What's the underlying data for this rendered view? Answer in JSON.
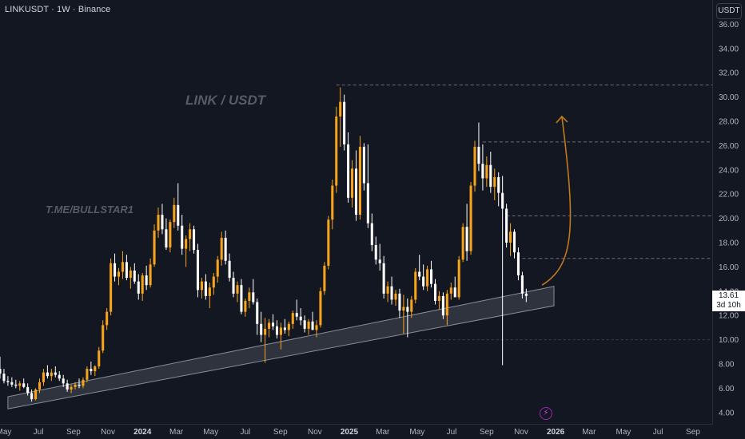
{
  "header": {
    "symbol_title": "LINKUSDT · 1W · Binance",
    "currency_button": "USDT"
  },
  "watermarks": {
    "pair": "LINK / USDT",
    "telegram": "T.ME/BULLSTAR1"
  },
  "last_price": {
    "value": "13.61",
    "countdown": "3d 10h"
  },
  "colors": {
    "background": "#131722",
    "bull_candle": "#f7a31c",
    "bear_candle": "#ffffff",
    "trendline": "#8a8d96",
    "arrow": "#c27a1c",
    "level_line": "#6b6f7a"
  },
  "chart_data": {
    "type": "candlestick",
    "title": "",
    "y_axis": {
      "side": "right",
      "range": [
        3.0,
        38.0
      ],
      "ticks": [
        "4.00",
        "6.00",
        "8.00",
        "10.00",
        "12.00",
        "14.00",
        "16.00",
        "18.00",
        "20.00",
        "22.00",
        "24.00",
        "26.00",
        "28.00",
        "30.00",
        "32.00",
        "34.00",
        "36.00"
      ]
    },
    "x_axis": {
      "start": "2023-04-24",
      "end": "2026-10-05",
      "labels": [
        {
          "text": "May",
          "date": "2023-05-01",
          "year": false
        },
        {
          "text": "Jul",
          "date": "2023-07-01",
          "year": false
        },
        {
          "text": "Sep",
          "date": "2023-09-01",
          "year": false
        },
        {
          "text": "Nov",
          "date": "2023-11-01",
          "year": false
        },
        {
          "text": "2024",
          "date": "2024-01-01",
          "year": true
        },
        {
          "text": "Mar",
          "date": "2024-03-01",
          "year": false
        },
        {
          "text": "May",
          "date": "2024-05-01",
          "year": false
        },
        {
          "text": "Jul",
          "date": "2024-07-01",
          "year": false
        },
        {
          "text": "Sep",
          "date": "2024-09-01",
          "year": false
        },
        {
          "text": "Nov",
          "date": "2024-11-01",
          "year": false
        },
        {
          "text": "2025",
          "date": "2025-01-01",
          "year": true
        },
        {
          "text": "Mar",
          "date": "2025-03-01",
          "year": false
        },
        {
          "text": "May",
          "date": "2025-05-01",
          "year": false
        },
        {
          "text": "Jul",
          "date": "2025-07-01",
          "year": false
        },
        {
          "text": "Sep",
          "date": "2025-09-01",
          "year": false
        },
        {
          "text": "Nov",
          "date": "2025-11-01",
          "year": false
        },
        {
          "text": "2026",
          "date": "2026-01-01",
          "year": true
        },
        {
          "text": "Mar",
          "date": "2026-03-01",
          "year": false
        },
        {
          "text": "May",
          "date": "2026-05-01",
          "year": false
        },
        {
          "text": "Jul",
          "date": "2026-07-01",
          "year": false
        },
        {
          "text": "Sep",
          "date": "2026-09-01",
          "year": false
        }
      ]
    },
    "grid": false,
    "candles_start": "2023-04-24",
    "candle_interval_days": 7,
    "candles": [
      [
        7.6,
        8.6,
        6.8,
        7.2
      ],
      [
        7.2,
        7.6,
        6.4,
        6.6
      ],
      [
        6.6,
        7.0,
        6.2,
        6.5
      ],
      [
        6.5,
        6.9,
        6.1,
        6.3
      ],
      [
        6.3,
        6.7,
        6.0,
        6.2
      ],
      [
        6.2,
        6.6,
        5.8,
        6.4
      ],
      [
        6.4,
        6.8,
        6.0,
        6.1
      ],
      [
        6.1,
        6.4,
        5.4,
        5.6
      ],
      [
        5.6,
        5.9,
        4.9,
        5.1
      ],
      [
        5.1,
        6.0,
        5.0,
        5.9
      ],
      [
        5.9,
        6.8,
        5.6,
        6.5
      ],
      [
        6.5,
        7.6,
        6.2,
        7.3
      ],
      [
        7.3,
        7.9,
        6.8,
        7.0
      ],
      [
        7.0,
        7.6,
        6.6,
        7.3
      ],
      [
        7.3,
        7.8,
        6.9,
        7.1
      ],
      [
        7.1,
        7.4,
        6.6,
        6.8
      ],
      [
        6.8,
        7.1,
        6.1,
        6.4
      ],
      [
        6.4,
        6.7,
        5.7,
        5.9
      ],
      [
        5.9,
        6.3,
        5.6,
        6.1
      ],
      [
        6.1,
        6.5,
        5.9,
        6.3
      ],
      [
        6.3,
        6.8,
        6.0,
        6.2
      ],
      [
        6.2,
        6.9,
        6.0,
        6.7
      ],
      [
        6.7,
        7.8,
        6.5,
        7.6
      ],
      [
        7.6,
        8.2,
        7.1,
        7.4
      ],
      [
        7.4,
        7.9,
        7.0,
        7.8
      ],
      [
        7.8,
        9.4,
        7.6,
        9.1
      ],
      [
        9.1,
        11.6,
        8.9,
        11.2
      ],
      [
        11.2,
        12.6,
        10.8,
        12.3
      ],
      [
        12.3,
        16.7,
        12.0,
        16.3
      ],
      [
        16.3,
        17.1,
        14.8,
        15.2
      ],
      [
        15.2,
        15.9,
        14.5,
        15.6
      ],
      [
        15.6,
        17.3,
        15.0,
        16.4
      ],
      [
        16.4,
        17.0,
        14.9,
        15.1
      ],
      [
        15.1,
        16.0,
        14.2,
        15.7
      ],
      [
        15.7,
        16.3,
        14.6,
        14.8
      ],
      [
        14.8,
        15.4,
        13.3,
        13.8
      ],
      [
        13.8,
        15.5,
        13.2,
        15.3
      ],
      [
        15.3,
        16.1,
        14.1,
        14.5
      ],
      [
        14.5,
        16.7,
        14.3,
        16.2
      ],
      [
        16.2,
        19.5,
        16.0,
        19.0
      ],
      [
        19.0,
        20.9,
        18.4,
        20.3
      ],
      [
        20.3,
        21.2,
        18.7,
        19.1
      ],
      [
        19.1,
        20.0,
        17.4,
        17.6
      ],
      [
        17.6,
        19.9,
        17.2,
        19.7
      ],
      [
        19.7,
        21.7,
        19.2,
        21.1
      ],
      [
        21.1,
        22.9,
        19.0,
        19.4
      ],
      [
        19.4,
        20.3,
        17.0,
        17.5
      ],
      [
        17.5,
        18.6,
        16.0,
        18.3
      ],
      [
        18.3,
        19.6,
        17.3,
        19.1
      ],
      [
        19.1,
        19.4,
        17.1,
        17.4
      ],
      [
        17.4,
        17.9,
        13.5,
        14.1
      ],
      [
        14.1,
        15.1,
        13.4,
        14.8
      ],
      [
        14.8,
        15.4,
        13.3,
        13.6
      ],
      [
        13.6,
        14.7,
        12.6,
        14.3
      ],
      [
        14.3,
        15.5,
        13.7,
        15.2
      ],
      [
        15.2,
        16.9,
        14.7,
        16.6
      ],
      [
        16.6,
        18.9,
        16.1,
        18.4
      ],
      [
        18.4,
        19.0,
        16.2,
        16.5
      ],
      [
        16.5,
        17.1,
        14.8,
        15.1
      ],
      [
        15.1,
        15.6,
        13.5,
        13.8
      ],
      [
        13.8,
        14.8,
        13.1,
        14.5
      ],
      [
        14.5,
        15.0,
        12.1,
        12.3
      ],
      [
        12.3,
        13.4,
        11.9,
        13.2
      ],
      [
        13.2,
        14.3,
        12.6,
        13.9
      ],
      [
        13.9,
        15.0,
        12.9,
        13.1
      ],
      [
        13.1,
        13.4,
        10.4,
        11.3
      ],
      [
        11.3,
        12.3,
        9.8,
        10.4
      ],
      [
        10.4,
        11.8,
        8.1,
        10.9
      ],
      [
        10.9,
        11.7,
        10.2,
        11.4
      ],
      [
        11.4,
        12.1,
        10.8,
        11.1
      ],
      [
        11.1,
        11.6,
        10.1,
        10.4
      ],
      [
        10.4,
        11.4,
        9.2,
        11.0
      ],
      [
        11.0,
        11.7,
        10.5,
        10.8
      ],
      [
        10.8,
        11.5,
        10.3,
        11.3
      ],
      [
        11.3,
        12.4,
        10.9,
        12.2
      ],
      [
        12.2,
        13.3,
        11.6,
        11.9
      ],
      [
        11.9,
        12.6,
        11.2,
        11.6
      ],
      [
        11.6,
        12.0,
        10.6,
        10.9
      ],
      [
        10.9,
        11.7,
        10.4,
        11.5
      ],
      [
        11.5,
        12.3,
        11.0,
        10.8
      ],
      [
        10.8,
        11.6,
        10.2,
        11.2
      ],
      [
        11.2,
        14.3,
        11.0,
        14.0
      ],
      [
        14.0,
        16.4,
        13.7,
        16.1
      ],
      [
        16.1,
        20.2,
        15.8,
        19.9
      ],
      [
        19.9,
        23.2,
        19.1,
        22.7
      ],
      [
        22.7,
        29.2,
        22.1,
        28.4
      ],
      [
        28.4,
        30.8,
        25.9,
        29.6
      ],
      [
        29.6,
        30.2,
        25.6,
        26.1
      ],
      [
        26.1,
        27.1,
        21.3,
        21.7
      ],
      [
        21.7,
        24.8,
        20.9,
        24.1
      ],
      [
        24.1,
        25.6,
        19.8,
        20.3
      ],
      [
        20.3,
        26.8,
        19.9,
        25.9
      ],
      [
        25.9,
        26.2,
        22.3,
        22.9
      ],
      [
        22.9,
        26.1,
        19.2,
        19.6
      ],
      [
        19.6,
        20.4,
        17.3,
        17.8
      ],
      [
        17.8,
        18.5,
        16.2,
        16.6
      ],
      [
        16.6,
        17.9,
        15.7,
        16.3
      ],
      [
        16.3,
        16.9,
        13.4,
        13.8
      ],
      [
        13.8,
        14.8,
        13.1,
        14.4
      ],
      [
        14.4,
        15.2,
        12.9,
        13.3
      ],
      [
        13.3,
        14.1,
        12.8,
        13.8
      ],
      [
        13.8,
        14.2,
        11.8,
        12.4
      ],
      [
        12.4,
        13.7,
        10.5,
        12.7
      ],
      [
        12.7,
        13.4,
        10.2,
        12.3
      ],
      [
        12.3,
        13.6,
        11.8,
        13.3
      ],
      [
        13.3,
        15.9,
        13.0,
        15.6
      ],
      [
        15.6,
        17.0,
        14.9,
        15.2
      ],
      [
        15.2,
        16.2,
        14.1,
        14.4
      ],
      [
        14.4,
        16.1,
        14.0,
        15.8
      ],
      [
        15.8,
        16.5,
        14.3,
        14.6
      ],
      [
        14.6,
        15.0,
        12.9,
        13.2
      ],
      [
        13.2,
        14.0,
        12.5,
        13.6
      ],
      [
        13.6,
        13.9,
        11.7,
        12.0
      ],
      [
        12.0,
        14.1,
        11.2,
        13.8
      ],
      [
        13.8,
        14.7,
        13.3,
        14.3
      ],
      [
        14.3,
        15.2,
        13.8,
        13.5
      ],
      [
        13.5,
        16.9,
        13.3,
        16.6
      ],
      [
        16.6,
        19.6,
        16.4,
        19.3
      ],
      [
        19.3,
        21.2,
        16.5,
        17.3
      ],
      [
        17.3,
        23.0,
        17.0,
        22.7
      ],
      [
        22.7,
        26.4,
        22.2,
        25.9
      ],
      [
        25.9,
        27.9,
        23.9,
        24.5
      ],
      [
        24.5,
        26.1,
        22.3,
        23.3
      ],
      [
        23.3,
        25.1,
        22.6,
        24.4
      ],
      [
        24.4,
        25.5,
        22.1,
        22.6
      ],
      [
        22.6,
        24.1,
        21.5,
        23.4
      ],
      [
        23.4,
        23.8,
        21.0,
        22.1
      ],
      [
        22.1,
        23.5,
        7.9,
        20.8
      ],
      [
        20.8,
        21.2,
        17.6,
        18.0
      ],
      [
        18.0,
        19.6,
        16.9,
        18.9
      ],
      [
        18.9,
        19.1,
        16.7,
        17.2
      ],
      [
        17.2,
        17.6,
        14.9,
        15.3
      ],
      [
        15.3,
        15.6,
        13.4,
        13.8
      ],
      [
        13.8,
        14.2,
        13.1,
        13.61
      ]
    ],
    "annotations": {
      "levels": [
        31.0,
        26.3,
        20.2,
        16.7
      ],
      "support_band": {
        "start": {
          "date": "2023-05-08",
          "low": 4.3,
          "high": 5.3
        },
        "end": {
          "date": "2025-12-29",
          "low": 12.8,
          "high": 14.4
        }
      },
      "projection_arrow": {
        "start": {
          "date": "2025-12-08",
          "price": 14.5
        },
        "end": {
          "date": "2026-01-12",
          "price": 28.4
        }
      }
    }
  }
}
